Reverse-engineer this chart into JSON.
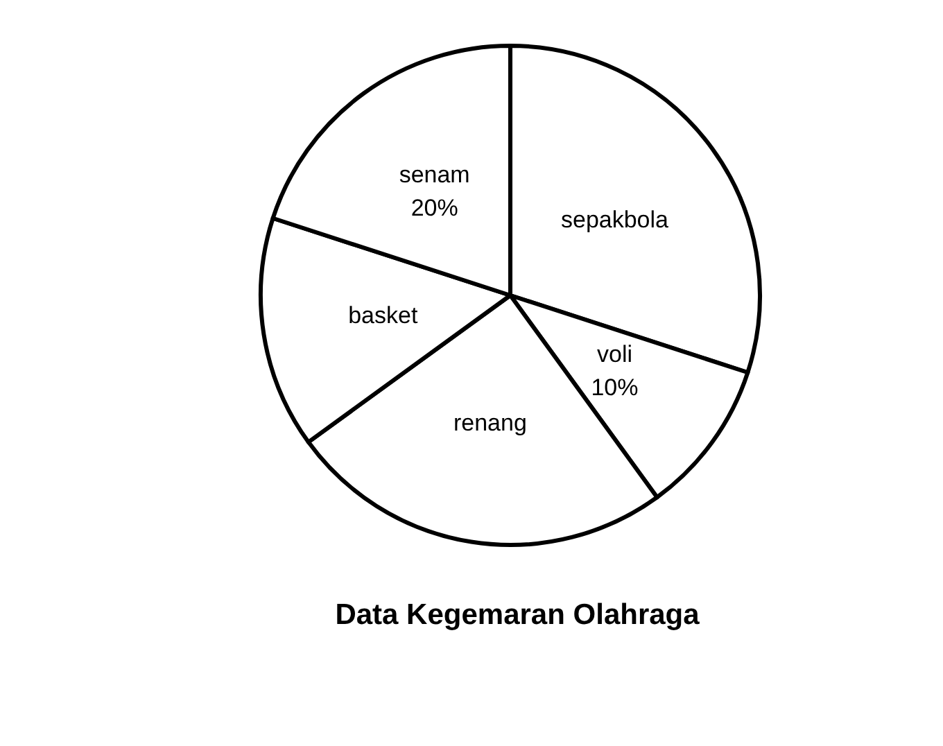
{
  "chart_data": {
    "type": "pie",
    "title": "Data Kegemaran Olahraga",
    "categories": [
      "sepakbola",
      "voli",
      "renang",
      "basket",
      "senam"
    ],
    "values": [
      30,
      10,
      25,
      15,
      20
    ],
    "value_labels": [
      null,
      "10%",
      null,
      null,
      "20%"
    ],
    "colors": [
      "#ffffff",
      "#ffffff",
      "#ffffff",
      "#ffffff",
      "#ffffff"
    ],
    "legend": false
  }
}
